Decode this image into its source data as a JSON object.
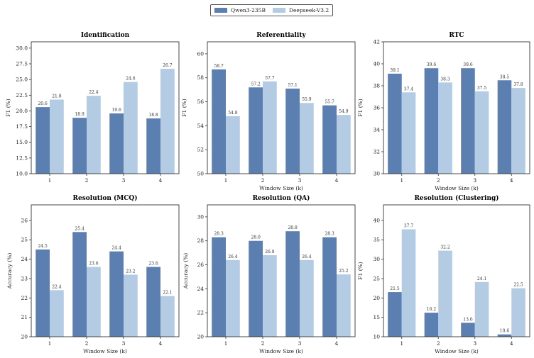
{
  "legend": [
    {
      "name": "Qwen3-235B",
      "color": "#5b7fb1"
    },
    {
      "name": "Deepseek-V3.2",
      "color": "#b3cce3"
    }
  ],
  "chart_data": [
    {
      "type": "bar",
      "title": "Identification",
      "xlabel": "",
      "ylabel": "F1 (%)",
      "categories": [
        "1",
        "2",
        "3",
        "4"
      ],
      "ylim": [
        10,
        31
      ],
      "yticks": [
        "10.0",
        "12.5",
        "15.0",
        "17.5",
        "20.0",
        "22.5",
        "25.0",
        "27.5",
        "30.0"
      ],
      "ytick_values": [
        10,
        12.5,
        15,
        17.5,
        20,
        22.5,
        25,
        27.5,
        30
      ],
      "series": [
        {
          "name": "Qwen3-235B",
          "values": [
            20.6,
            18.9,
            19.6,
            18.8
          ],
          "labels": [
            "20.6",
            "18.9",
            "19.6",
            "18.8"
          ]
        },
        {
          "name": "Deepseek-V3.2",
          "values": [
            21.8,
            22.4,
            24.6,
            26.7
          ],
          "labels": [
            "21.8",
            "22.4",
            "24.6",
            "26.7"
          ]
        }
      ]
    },
    {
      "type": "bar",
      "title": "Referentiality",
      "xlabel": "Window Size (k)",
      "ylabel": "F1 (%)",
      "categories": [
        "1",
        "2",
        "3",
        "4"
      ],
      "ylim": [
        50,
        61
      ],
      "yticks": [
        "50",
        "52",
        "54",
        "56",
        "58",
        "60"
      ],
      "ytick_values": [
        50,
        52,
        54,
        56,
        58,
        60
      ],
      "series": [
        {
          "name": "Qwen3-235B",
          "values": [
            58.7,
            57.2,
            57.1,
            55.7
          ],
          "labels": [
            "58.7",
            "57.2",
            "57.1",
            "55.7"
          ]
        },
        {
          "name": "Deepseek-V3.2",
          "values": [
            54.8,
            57.7,
            55.9,
            54.9
          ],
          "labels": [
            "54.8",
            "57.7",
            "55.9",
            "54.9"
          ]
        }
      ]
    },
    {
      "type": "bar",
      "title": "RTC",
      "xlabel": "Window Size (k)",
      "ylabel": "F1 (%)",
      "categories": [
        "1",
        "2",
        "3",
        "4"
      ],
      "ylim": [
        30,
        42
      ],
      "yticks": [
        "30",
        "32",
        "34",
        "36",
        "38",
        "40",
        "42"
      ],
      "ytick_values": [
        30,
        32,
        34,
        36,
        38,
        40,
        42
      ],
      "series": [
        {
          "name": "Qwen3-235B",
          "values": [
            39.1,
            39.6,
            39.6,
            38.5
          ],
          "labels": [
            "39.1",
            "39.6",
            "39.6",
            "38.5"
          ]
        },
        {
          "name": "Deepseek-V3.2",
          "values": [
            37.4,
            38.3,
            37.5,
            37.8
          ],
          "labels": [
            "37.4",
            "38.3",
            "37.5",
            "37.8"
          ]
        }
      ]
    },
    {
      "type": "bar",
      "title": "Resolution (MCQ)",
      "xlabel": "Window Size (k)",
      "ylabel": "Accuracy (%)",
      "categories": [
        "1",
        "2",
        "3",
        "4"
      ],
      "ylim": [
        20,
        26.8
      ],
      "yticks": [
        "20",
        "21",
        "22",
        "23",
        "24",
        "25",
        "26"
      ],
      "ytick_values": [
        20,
        21,
        22,
        23,
        24,
        25,
        26
      ],
      "series": [
        {
          "name": "Qwen3-235B",
          "values": [
            24.5,
            25.4,
            24.4,
            23.6
          ],
          "labels": [
            "24.5",
            "25.4",
            "24.4",
            "23.6"
          ]
        },
        {
          "name": "Deepseek-V3.2",
          "values": [
            22.4,
            23.6,
            23.2,
            22.1
          ],
          "labels": [
            "22.4",
            "23.6",
            "23.2",
            "22.1"
          ]
        }
      ]
    },
    {
      "type": "bar",
      "title": "Resolution (QA)",
      "xlabel": "Window Size (k)",
      "ylabel": "Accuracy (%)",
      "categories": [
        "1",
        "2",
        "3",
        "4"
      ],
      "ylim": [
        20,
        31
      ],
      "yticks": [
        "20",
        "22",
        "24",
        "26",
        "28",
        "30"
      ],
      "ytick_values": [
        20,
        22,
        24,
        26,
        28,
        30
      ],
      "series": [
        {
          "name": "Qwen3-235B",
          "values": [
            28.3,
            28.0,
            28.8,
            28.3
          ],
          "labels": [
            "28.3",
            "28.0",
            "28.8",
            "28.3"
          ]
        },
        {
          "name": "Deepseek-V3.2",
          "values": [
            26.4,
            26.8,
            26.4,
            25.2
          ],
          "labels": [
            "26.4",
            "26.8",
            "26.4",
            "25.2"
          ]
        }
      ]
    },
    {
      "type": "bar",
      "title": "Resolution (Clustering)",
      "xlabel": "Window Size (k)",
      "ylabel": "F1 (%)",
      "categories": [
        "1",
        "2",
        "3",
        "4"
      ],
      "ylim": [
        10,
        44
      ],
      "yticks": [
        "10",
        "15",
        "20",
        "25",
        "30",
        "35",
        "40"
      ],
      "ytick_values": [
        10,
        15,
        20,
        25,
        30,
        35,
        40
      ],
      "series": [
        {
          "name": "Qwen3-235B",
          "values": [
            21.5,
            16.2,
            13.6,
            10.6
          ],
          "labels": [
            "21.5",
            "16.2",
            "13.6",
            "10.6"
          ]
        },
        {
          "name": "Deepseek-V3.2",
          "values": [
            37.7,
            32.2,
            24.1,
            22.5
          ],
          "labels": [
            "37.7",
            "32.2",
            "24.1",
            "22.5"
          ]
        }
      ]
    }
  ]
}
